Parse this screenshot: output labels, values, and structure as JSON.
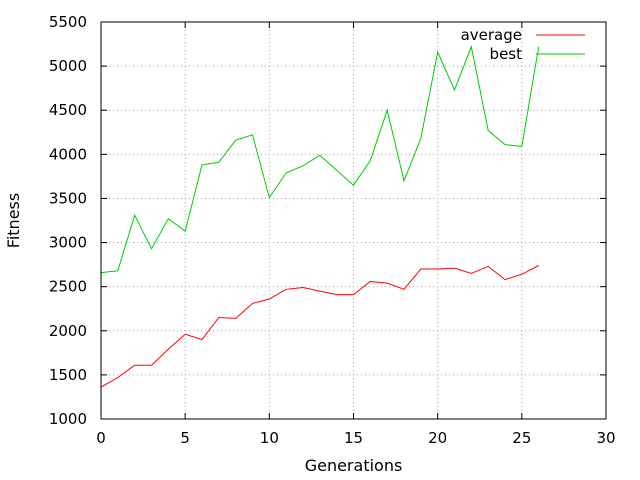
{
  "chart_data": {
    "type": "line",
    "title": "",
    "xlabel": "Generations",
    "ylabel": "Fitness",
    "xlim": [
      0,
      30
    ],
    "ylim": [
      1000,
      5500
    ],
    "x_ticks": [
      0,
      5,
      10,
      15,
      20,
      25,
      30
    ],
    "y_ticks": [
      1000,
      1500,
      2000,
      2500,
      3000,
      3500,
      4000,
      4500,
      5000,
      5500
    ],
    "grid": true,
    "legend_position": "top-right",
    "x": [
      0,
      1,
      2,
      3,
      4,
      5,
      6,
      7,
      8,
      9,
      10,
      11,
      12,
      13,
      14,
      15,
      16,
      17,
      18,
      19,
      20,
      21,
      22,
      23,
      24,
      25,
      26
    ],
    "series": [
      {
        "name": "average",
        "color": "#ff0000",
        "values": [
          1360,
          1470,
          1610,
          1610,
          1790,
          1960,
          1900,
          2150,
          2140,
          2310,
          2360,
          2470,
          2490,
          2450,
          2410,
          2410,
          2560,
          2540,
          2470,
          2700,
          2700,
          2710,
          2650,
          2730,
          2580,
          2640,
          2740
        ]
      },
      {
        "name": "best",
        "color": "#00cc00",
        "values": [
          2660,
          2680,
          3310,
          2930,
          3270,
          3130,
          3880,
          3910,
          4160,
          4220,
          3510,
          3790,
          3870,
          3990,
          3820,
          3650,
          3930,
          4500,
          3700,
          4180,
          5160,
          4730,
          5220,
          4270,
          4110,
          4090,
          5220
        ]
      }
    ]
  }
}
